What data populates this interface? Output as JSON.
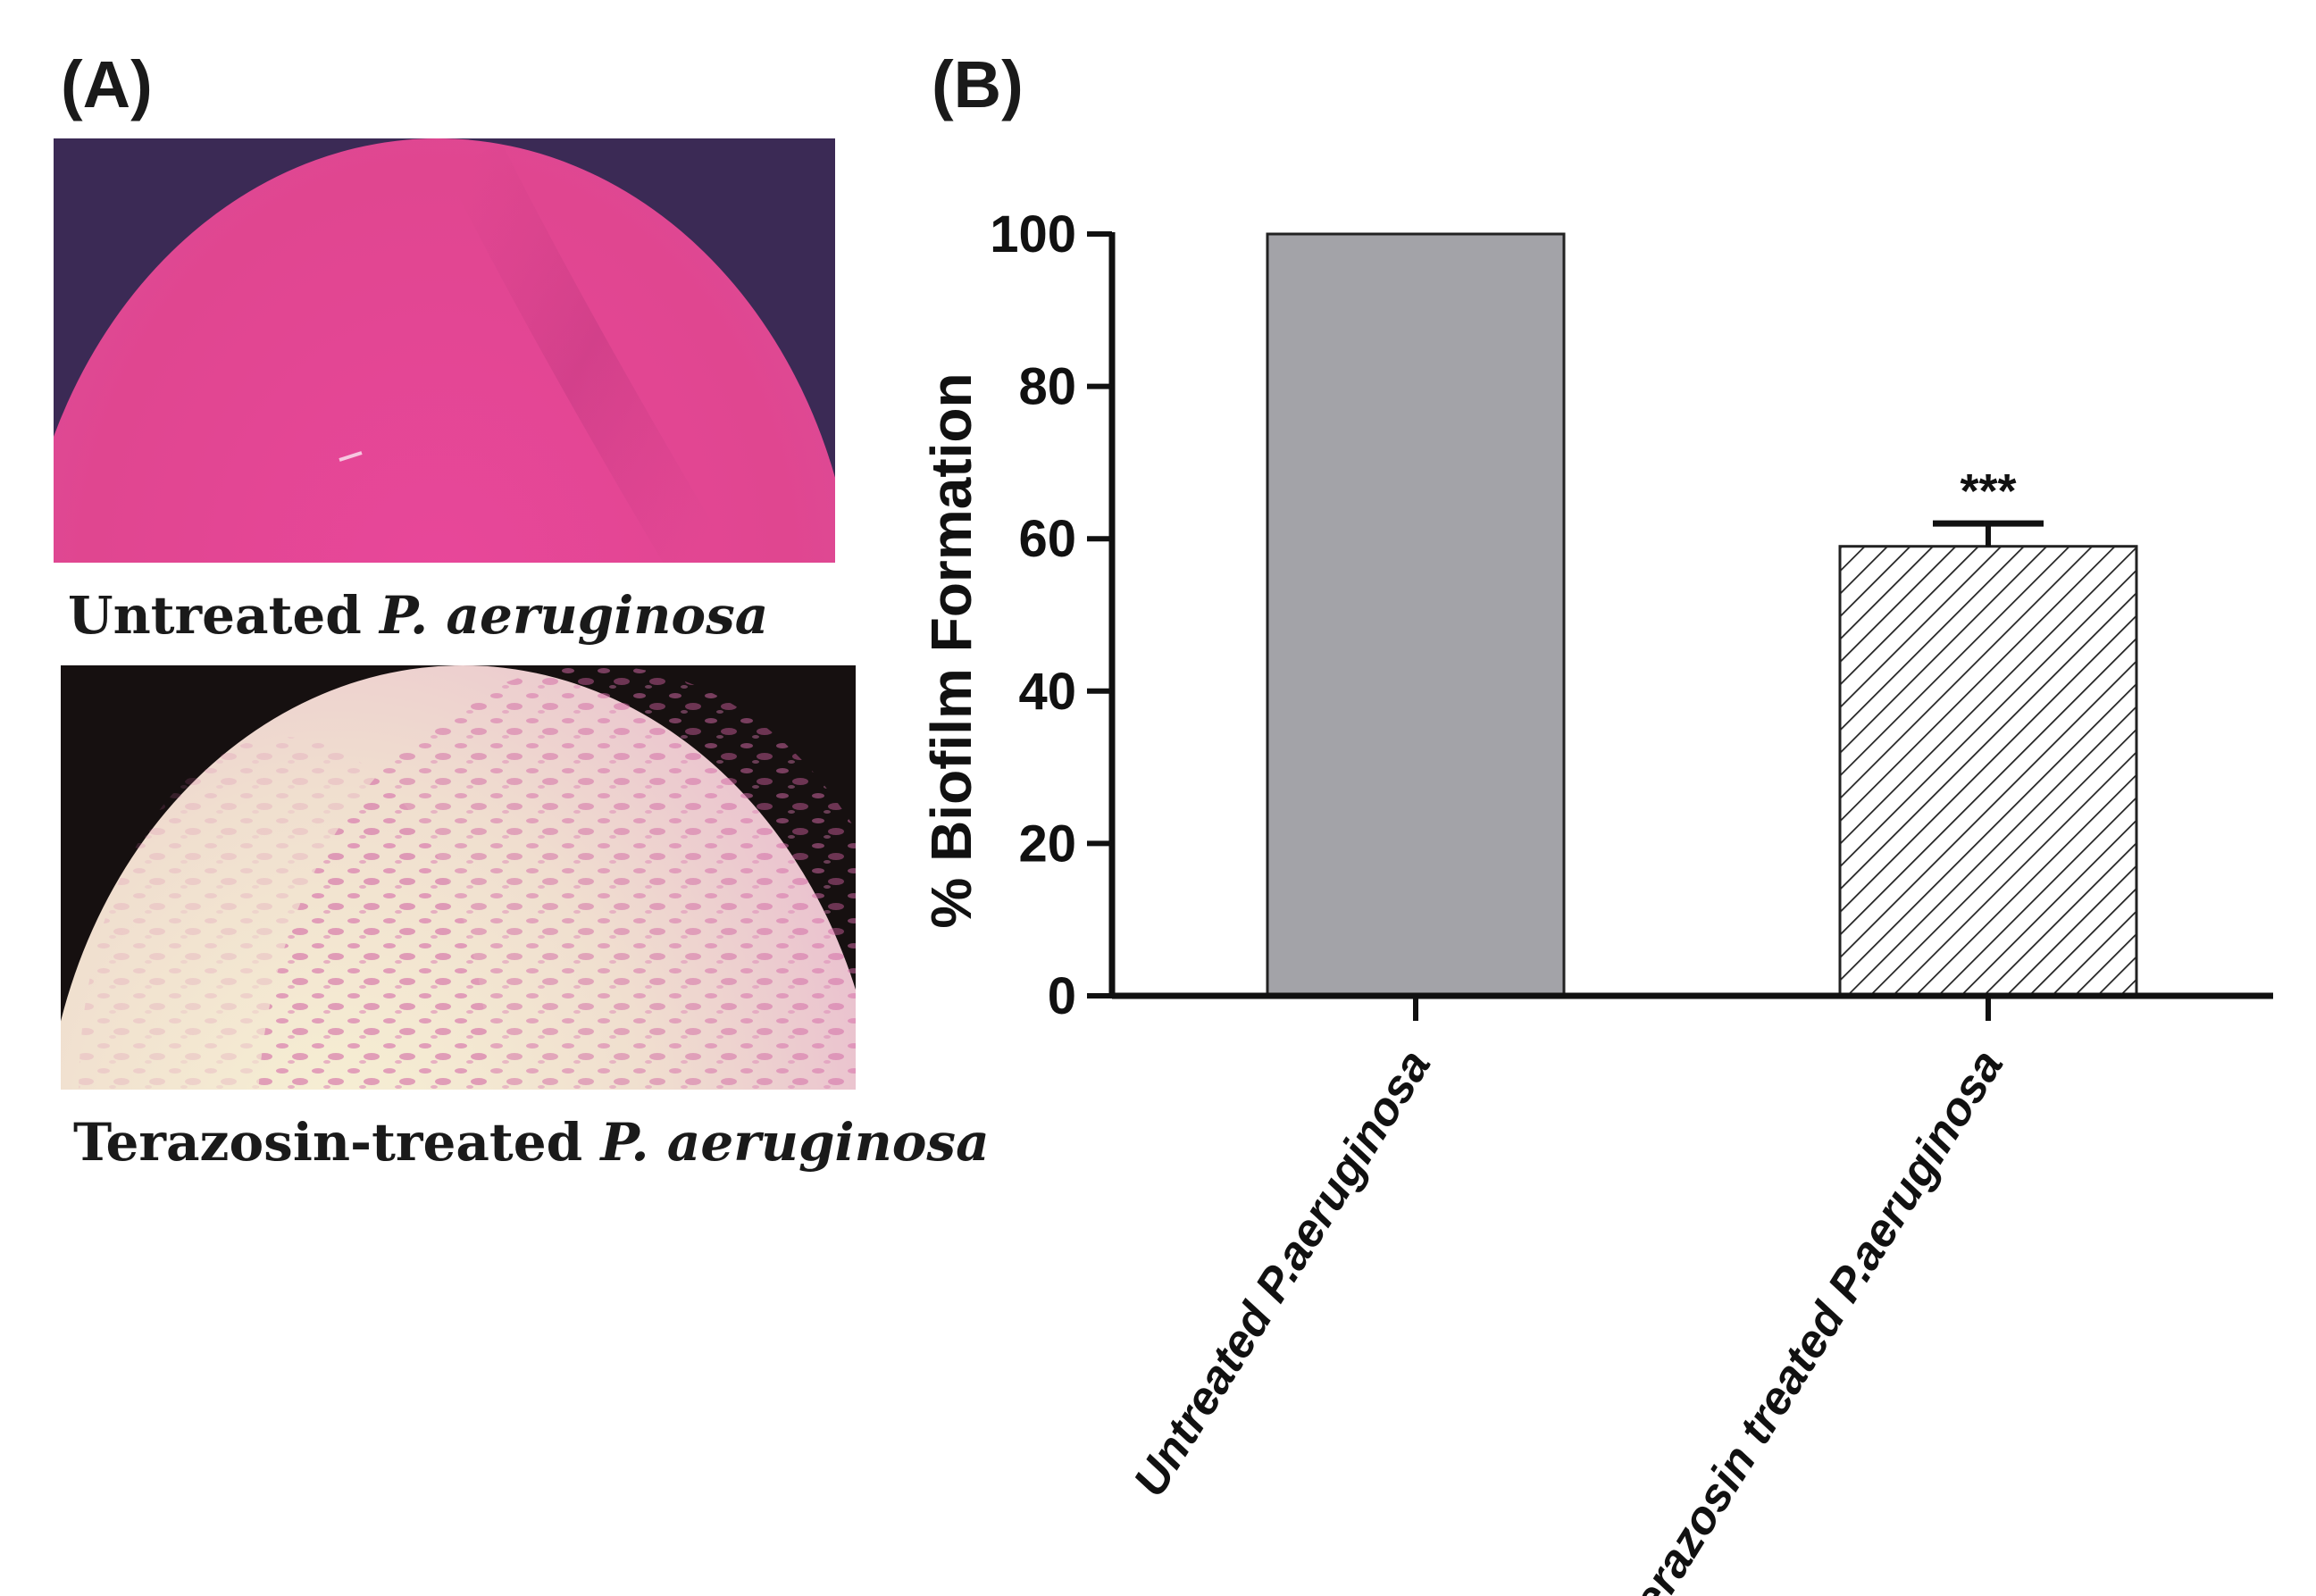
{
  "panels": {
    "a_label": "(A)",
    "b_label": "(B)"
  },
  "micrographs": [
    {
      "caption_prefix": "Untreated ",
      "caption_species": "P. aeruginosa",
      "dominant_colors": [
        "#e0438e",
        "#3b2a55"
      ]
    },
    {
      "caption_prefix": "Terazosin-treated ",
      "caption_species": "P. aeruginosa",
      "dominant_colors": [
        "#f2ebc9",
        "#d983b8",
        "#1a1a1a"
      ]
    }
  ],
  "chart_data": {
    "type": "bar",
    "categories": [
      "Untreated P.aeruginosa",
      "Terazosin treated P.aeruginosa"
    ],
    "values": [
      100,
      59
    ],
    "error": [
      0,
      3
    ],
    "annotations": [
      "",
      "***"
    ],
    "ylabel": "% Biofilm Formation",
    "xlabel": "",
    "ylim": [
      0,
      100
    ],
    "yticks": [
      0,
      20,
      40,
      60,
      80,
      100
    ],
    "bar_fills": [
      "solid",
      "hatched"
    ],
    "colors": {
      "bar_solid": "#a3a3a8",
      "axis": "#111111"
    },
    "grid": false
  }
}
